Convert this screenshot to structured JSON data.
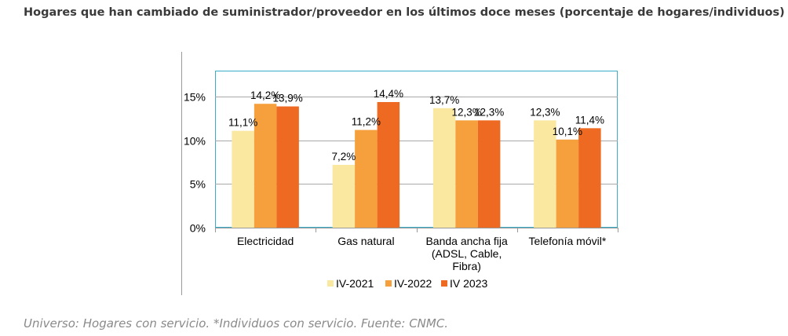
{
  "page": {
    "title": "Hogares que han cambiado de suministrador/proveedor en los últimos doce meses (porcentaje de hogares/individuos)",
    "source": "Universo: Hogares con servicio. *Individuos con servicio. Fuente: CNMC."
  },
  "chart_data": {
    "type": "bar",
    "title": "Hogares que han cambiado de suministrador/proveedor en los últimos doce meses (porcentaje de hogares/individuos)",
    "categories": [
      [
        "Electricidad"
      ],
      [
        "Gas natural"
      ],
      [
        "Banda ancha fija",
        "(ADSL, Cable,",
        "Fibra)"
      ],
      [
        "Telefonía móvil*"
      ]
    ],
    "series": [
      {
        "name": "IV-2021",
        "color": "#fbe8a0",
        "values": [
          11.1,
          7.2,
          13.7,
          12.3
        ],
        "labels": [
          "11,1%",
          "7,2%",
          "13,7%",
          "12,3%"
        ]
      },
      {
        "name": "IV-2022",
        "color": "#f5a03c",
        "values": [
          14.2,
          11.2,
          12.3,
          10.1
        ],
        "labels": [
          "14,2%",
          "11,2%",
          "12,3%",
          "10,1%"
        ]
      },
      {
        "name": "IV 2023",
        "color": "#ee6a22",
        "values": [
          13.9,
          14.4,
          12.3,
          11.4
        ],
        "labels": [
          "13,9%",
          "14,4%",
          "12,3%",
          "11,4%"
        ]
      }
    ],
    "y_ticks": [
      {
        "value": 0,
        "label": "0%"
      },
      {
        "value": 5,
        "label": "5%"
      },
      {
        "value": 10,
        "label": "10%"
      },
      {
        "value": 15,
        "label": "15%"
      }
    ],
    "ylim": [
      0,
      18
    ],
    "grid": true,
    "legend_position": "bottom",
    "xlabel": "",
    "ylabel": ""
  }
}
